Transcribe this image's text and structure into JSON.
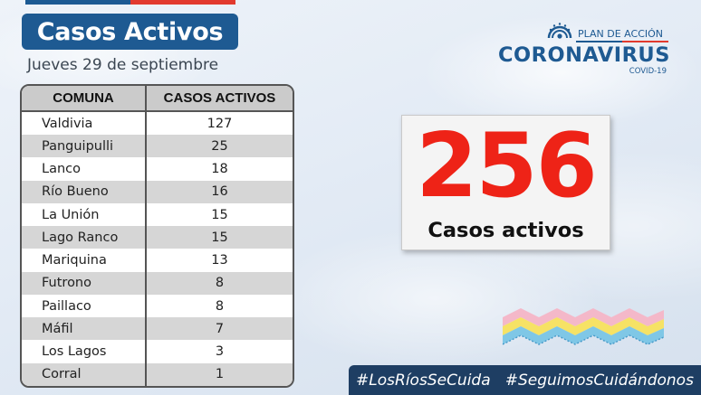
{
  "header": {
    "title": "Casos Activos",
    "date": "Jueves 29 de septiembre"
  },
  "table": {
    "columns": [
      "COMUNA",
      "CASOS ACTIVOS"
    ],
    "rows": [
      {
        "comuna": "Valdivia",
        "casos": "127"
      },
      {
        "comuna": "Panguipulli",
        "casos": "25"
      },
      {
        "comuna": "Lanco",
        "casos": "18"
      },
      {
        "comuna": "Río Bueno",
        "casos": "16"
      },
      {
        "comuna": "La Unión",
        "casos": "15"
      },
      {
        "comuna": "Lago Ranco",
        "casos": "15"
      },
      {
        "comuna": "Mariquina",
        "casos": "13"
      },
      {
        "comuna": "Futrono",
        "casos": "8"
      },
      {
        "comuna": "Paillaco",
        "casos": "8"
      },
      {
        "comuna": "Máfil",
        "casos": "7"
      },
      {
        "comuna": "Los Lagos",
        "casos": "3"
      },
      {
        "comuna": "Corral",
        "casos": "1"
      }
    ]
  },
  "logo": {
    "plan": "PLAN DE ACCIÓN",
    "name": "CORONAVIRUS",
    "sub": "COVID-19"
  },
  "summary": {
    "total": "256",
    "label": "Casos activos"
  },
  "footer": {
    "hashtag1": "#LosRíosSeCuida",
    "hashtag2": "#SeguimosCuidándonos"
  },
  "colors": {
    "brand_blue": "#1e5a92",
    "accent_red": "#ee2317",
    "footer_navy": "#1e3e63"
  }
}
